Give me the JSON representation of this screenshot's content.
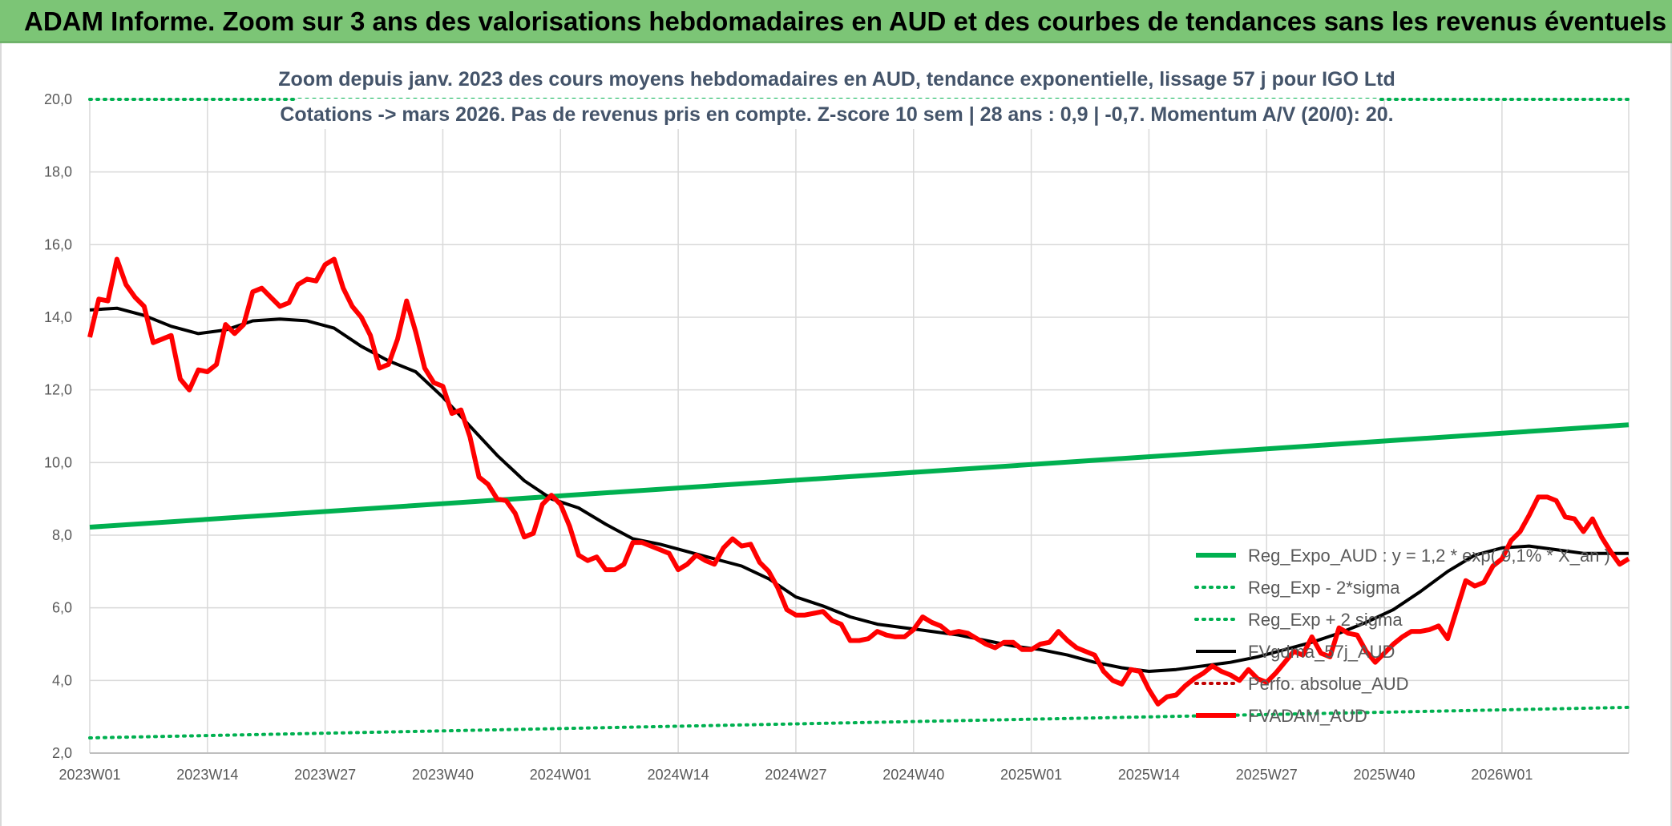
{
  "header": {
    "title": "ADAM Informe. Zoom sur 3 ans des valorisations hebdomadaires en AUD et des courbes de tendances sans les revenus éventuels"
  },
  "colors": {
    "banner": "#7cc576",
    "trend": "#00b050",
    "price": "#ff0000",
    "smooth": "#000000",
    "perf": "#c00000",
    "grid": "#d9d9d9"
  },
  "chart_data": {
    "type": "line",
    "subtitle_lines": [
      "Zoom depuis janv. 2023 des cours moyens hebdomadaires en AUD, tendance exponentielle, lissage 57 j pour IGO Ltd",
      "Cotations -> mars 2026. Pas de revenus pris en compte. Z-score 10 sem | 28 ans : 0,9 | -0,7. Momentum A/V (20/0): 20."
    ],
    "x_tick_labels": [
      "2023W01",
      "2023W14",
      "2023W27",
      "2023W40",
      "2024W01",
      "2024W14",
      "2024W27",
      "2024W40",
      "2025W01",
      "2025W14",
      "2025W27",
      "2025W40",
      "2026W01"
    ],
    "x_tick_weeks": [
      0,
      13,
      26,
      39,
      52,
      65,
      78,
      91,
      104,
      117,
      130,
      143,
      156
    ],
    "x_range": [
      0,
      170
    ],
    "ylim": [
      2,
      20
    ],
    "y_ticks": [
      "2,0",
      "4,0",
      "6,0",
      "8,0",
      "10,0",
      "12,0",
      "14,0",
      "16,0",
      "18,0",
      "20,0"
    ],
    "y_tick_values": [
      2,
      4,
      6,
      8,
      10,
      12,
      14,
      16,
      18,
      20
    ],
    "grid": true,
    "legend_position": "bottom-right",
    "series": [
      {
        "name": "Reg_Expo_AUD : y = 1,2 * exp( 9,1% * X_an )",
        "style": "solid-thick",
        "color": "#00b050",
        "x": [
          0,
          170
        ],
        "y": [
          8.22,
          11.04
        ]
      },
      {
        "name": "Reg_Exp - 2*sigma",
        "style": "dotted",
        "color": "#00b050",
        "x": [
          0,
          170
        ],
        "y": [
          2.42,
          3.26
        ]
      },
      {
        "name": "Reg_Exp + 2 sigma",
        "style": "dotted",
        "color": "#00b050",
        "x": [
          0,
          170
        ],
        "y": [
          20.0,
          20.0
        ]
      },
      {
        "name": "FVgdma_57j_AUD",
        "style": "solid",
        "color": "#000000",
        "x": [
          0,
          3,
          6,
          9,
          12,
          15,
          18,
          21,
          24,
          27,
          30,
          33,
          36,
          39,
          42,
          45,
          48,
          51,
          54,
          57,
          60,
          63,
          66,
          69,
          72,
          75,
          78,
          81,
          84,
          87,
          90,
          93,
          96,
          99,
          102,
          105,
          108,
          111,
          114,
          117,
          120,
          123,
          126,
          129,
          132,
          135,
          138,
          141,
          144,
          147,
          150,
          153,
          156,
          159,
          162,
          165,
          168,
          170
        ],
        "y": [
          14.2,
          14.25,
          14.05,
          13.75,
          13.55,
          13.65,
          13.9,
          13.95,
          13.9,
          13.7,
          13.2,
          12.8,
          12.5,
          11.8,
          11.0,
          10.2,
          9.5,
          9.0,
          8.75,
          8.3,
          7.9,
          7.75,
          7.55,
          7.35,
          7.15,
          6.8,
          6.3,
          6.05,
          5.75,
          5.55,
          5.45,
          5.35,
          5.25,
          5.1,
          4.95,
          4.85,
          4.7,
          4.5,
          4.35,
          4.25,
          4.3,
          4.4,
          4.5,
          4.65,
          4.85,
          5.05,
          5.3,
          5.6,
          5.95,
          6.45,
          7.0,
          7.45,
          7.65,
          7.7,
          7.6,
          7.5,
          7.5,
          7.5
        ]
      },
      {
        "name": "Perfo. absolue_AUD",
        "style": "dotted",
        "color": "#c00000",
        "x": [],
        "y": []
      },
      {
        "name": "FVADAM_AUD",
        "style": "solid-thick",
        "color": "#ff0000",
        "x": [
          0,
          1,
          2,
          3,
          4,
          5,
          6,
          7,
          8,
          9,
          10,
          11,
          12,
          13,
          14,
          15,
          16,
          17,
          18,
          19,
          20,
          21,
          22,
          23,
          24,
          25,
          26,
          27,
          28,
          29,
          30,
          31,
          32,
          33,
          34,
          35,
          36,
          37,
          38,
          39,
          40,
          41,
          42,
          43,
          44,
          45,
          46,
          47,
          48,
          49,
          50,
          51,
          52,
          53,
          54,
          55,
          56,
          57,
          58,
          59,
          60,
          61,
          62,
          63,
          64,
          65,
          66,
          67,
          68,
          69,
          70,
          71,
          72,
          73,
          74,
          75,
          76,
          77,
          78,
          79,
          80,
          81,
          82,
          83,
          84,
          85,
          86,
          87,
          88,
          89,
          90,
          91,
          92,
          93,
          94,
          95,
          96,
          97,
          98,
          99,
          100,
          101,
          102,
          103,
          104,
          105,
          106,
          107,
          108,
          109,
          110,
          111,
          112,
          113,
          114,
          115,
          116,
          117,
          118,
          119,
          120,
          121,
          122,
          123,
          124,
          125,
          126,
          127,
          128,
          129,
          130,
          131,
          132,
          133,
          134,
          135,
          136,
          137,
          138,
          139,
          140,
          141,
          142,
          143,
          144,
          145,
          146,
          147,
          148,
          149,
          150,
          151,
          152,
          153,
          154,
          155,
          156,
          157,
          158,
          159,
          160,
          161,
          162,
          163,
          164,
          165,
          166,
          167,
          168,
          169,
          170
        ],
        "y": [
          13.45,
          14.5,
          14.45,
          15.6,
          14.9,
          14.55,
          14.3,
          13.3,
          13.4,
          13.5,
          12.3,
          12.0,
          12.55,
          12.5,
          12.7,
          13.8,
          13.55,
          13.8,
          14.7,
          14.8,
          14.55,
          14.3,
          14.4,
          14.9,
          15.05,
          15.0,
          15.45,
          15.6,
          14.8,
          14.3,
          14.0,
          13.5,
          12.6,
          12.7,
          13.4,
          14.45,
          13.6,
          12.6,
          12.2,
          12.1,
          11.35,
          11.45,
          10.7,
          9.6,
          9.4,
          9.0,
          8.95,
          8.6,
          7.95,
          8.05,
          8.85,
          9.1,
          8.85,
          8.25,
          7.45,
          7.3,
          7.4,
          7.05,
          7.05,
          7.2,
          7.8,
          7.8,
          7.7,
          7.6,
          7.5,
          7.05,
          7.2,
          7.45,
          7.3,
          7.2,
          7.65,
          7.9,
          7.7,
          7.75,
          7.25,
          7.0,
          6.55,
          5.95,
          5.8,
          5.8,
          5.85,
          5.9,
          5.65,
          5.55,
          5.1,
          5.1,
          5.15,
          5.35,
          5.25,
          5.2,
          5.2,
          5.4,
          5.75,
          5.6,
          5.5,
          5.3,
          5.35,
          5.3,
          5.15,
          5.0,
          4.9,
          5.05,
          5.05,
          4.85,
          4.85,
          5.0,
          5.05,
          5.35,
          5.1,
          4.9,
          4.8,
          4.7,
          4.25,
          4.0,
          3.9,
          4.3,
          4.25,
          3.75,
          3.35,
          3.55,
          3.6,
          3.85,
          4.05,
          4.2,
          4.4,
          4.25,
          4.15,
          4.0,
          4.3,
          4.05,
          3.95,
          4.2,
          4.5,
          4.8,
          4.7,
          5.2,
          4.75,
          4.65,
          5.45,
          5.3,
          5.25,
          4.8,
          4.5,
          4.75,
          5.0,
          5.2,
          5.35,
          5.35,
          5.4,
          5.5,
          5.15,
          5.95,
          6.75,
          6.6,
          6.7,
          7.15,
          7.35,
          7.85,
          8.1,
          8.55,
          9.05,
          9.05,
          8.95,
          8.5,
          8.45,
          8.1,
          8.45,
          7.95,
          7.55,
          7.2,
          7.35
        ]
      }
    ]
  }
}
